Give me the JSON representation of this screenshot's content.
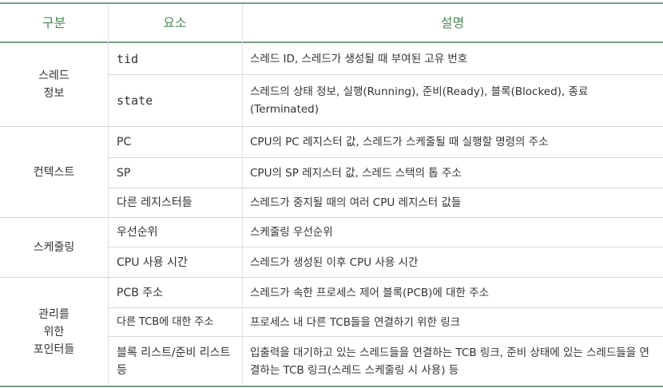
{
  "header": {
    "col1": "구분",
    "col2": "요소",
    "col3": "설명"
  },
  "groups": [
    {
      "name": "스레드\n정보",
      "rows": [
        {
          "element": "tid",
          "description": "스레드 ID, 스레드가 생성될 때 부여된 고유 번호"
        },
        {
          "element": "state",
          "description": "스레드의 상태 정보, 실행(Running), 준비(Ready), 블록(Blocked), 종료(Terminated)"
        }
      ]
    },
    {
      "name": "컨텍스트",
      "rows": [
        {
          "element": "PC",
          "description": "CPU의 PC 레지스터 값, 스레드가 스케줄될 때 실행할 명령의 주소"
        },
        {
          "element": "SP",
          "description": "CPU의 SP 레지스터 값, 스레드 스택의 톱 주소"
        },
        {
          "element": "다른 레지스터들",
          "description": "스레드가 중지될 때의 여러 CPU 레지스터 값들"
        }
      ]
    },
    {
      "name": "스케줄링",
      "rows": [
        {
          "element": "우선순위",
          "description": "스케줄링 우선순위"
        },
        {
          "element": "CPU 사용 시간",
          "description": "스레드가 생성된 이후 CPU 사용 시간"
        }
      ]
    },
    {
      "name": "관리를\n위한\n포인터들",
      "rows": [
        {
          "element": "PCB 주소",
          "description": "스레드가 속한 프로세스 제어 블록(PCB)에 대한 주소"
        },
        {
          "element": "다른 TCB에 대한 주소",
          "description": "프로세스 내 다른 TCB들을 연결하기 위한 링크"
        },
        {
          "element": "블록 리스트/준비 리스트 등",
          "description": "입출력을 대기하고 있는 스레드들을 연결하는 TCB 링크, 준비 상태에 있는 스레드들을 연결하는 TCB 링크(스레드 스케줄링 시 사용) 등"
        }
      ]
    }
  ]
}
